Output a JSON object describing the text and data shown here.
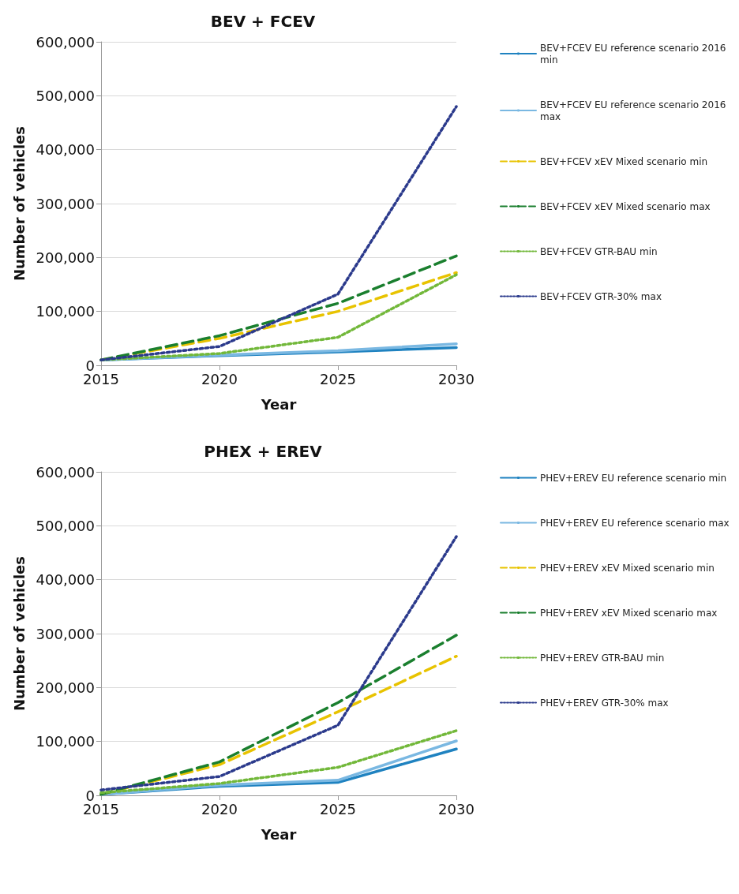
{
  "chart_data": [
    {
      "type": "line",
      "title": "BEV + FCEV",
      "xlabel": "Year",
      "ylabel": "Number of vehicles",
      "x": [
        2015,
        2020,
        2025,
        2030
      ],
      "xlim": [
        2015,
        2030
      ],
      "xticks": [
        2015,
        2020,
        2025,
        2030
      ],
      "ylim": [
        0,
        600000
      ],
      "yticks": [
        {
          "value": 0,
          "label": "0"
        },
        {
          "value": 100000,
          "label": "100,000"
        },
        {
          "value": 200000,
          "label": "200,000"
        },
        {
          "value": 300000,
          "label": "300,000"
        },
        {
          "value": 400000,
          "label": "400,000"
        },
        {
          "value": 500000,
          "label": "500,000"
        },
        {
          "value": 600000,
          "label": "600,000"
        }
      ],
      "grid": "y",
      "legend": "right",
      "marker": "none",
      "series": [
        {
          "name": "BEV+FCEV EU reference scenario 2016 min",
          "color": "#1f82c0",
          "line_style": "solid",
          "values": [
            10000,
            18000,
            25000,
            33000
          ]
        },
        {
          "name": "BEV+FCEV EU reference scenario 2016 max",
          "color": "#7ab8e2",
          "line_style": "solid",
          "values": [
            10000,
            19000,
            27000,
            40000
          ]
        },
        {
          "name": "BEV+FCEV xEV Mixed scenario min",
          "color": "#e8c300",
          "line_style": "dashed",
          "values": [
            10000,
            50000,
            100000,
            172000
          ]
        },
        {
          "name": "BEV+FCEV xEV Mixed scenario max",
          "color": "#1a7f2e",
          "line_style": "dashed",
          "values": [
            10000,
            55000,
            115000,
            203000
          ]
        },
        {
          "name": "BEV+FCEV GTR-BAU min",
          "color": "#72b83a",
          "line_style": "dotted",
          "values": [
            10000,
            22000,
            52000,
            168000
          ]
        },
        {
          "name": "BEV+FCEV GTR-30% max",
          "color": "#2b3a8c",
          "line_style": "dotted",
          "values": [
            10000,
            35000,
            132000,
            480000
          ]
        }
      ]
    },
    {
      "type": "line",
      "title": "PHEX + EREV",
      "xlabel": "Year",
      "ylabel": "Number of vehicles",
      "x": [
        2015,
        2020,
        2025,
        2030
      ],
      "xlim": [
        2015,
        2030
      ],
      "xticks": [
        2015,
        2020,
        2025,
        2030
      ],
      "ylim": [
        0,
        600000
      ],
      "yticks": [
        {
          "value": 0,
          "label": "0"
        },
        {
          "value": 100000,
          "label": "100,000"
        },
        {
          "value": 200000,
          "label": "200,000"
        },
        {
          "value": 300000,
          "label": "300,000"
        },
        {
          "value": 400000,
          "label": "400,000"
        },
        {
          "value": 500000,
          "label": "500,000"
        },
        {
          "value": 600000,
          "label": "600,000"
        }
      ],
      "grid": "y",
      "legend": "right",
      "marker": "none",
      "series": [
        {
          "name": "PHEV+EREV EU reference scenario min",
          "color": "#1f82c0",
          "line_style": "solid",
          "values": [
            2000,
            17000,
            24000,
            86000
          ]
        },
        {
          "name": "PHEV+EREV EU reference scenario max",
          "color": "#7ab8e2",
          "line_style": "solid",
          "values": [
            2000,
            19000,
            28000,
            101000
          ]
        },
        {
          "name": "PHEV+EREV xEV Mixed scenario min",
          "color": "#e8c300",
          "line_style": "dashed",
          "values": [
            2000,
            57000,
            155000,
            258000
          ]
        },
        {
          "name": "PHEV+EREV xEV Mixed scenario max",
          "color": "#1a7f2e",
          "line_style": "dashed",
          "values": [
            2000,
            62000,
            172000,
            297000
          ]
        },
        {
          "name": "PHEV+EREV GTR-BAU min",
          "color": "#72b83a",
          "line_style": "dotted",
          "values": [
            5000,
            22000,
            52000,
            120000
          ]
        },
        {
          "name": "PHEV+EREV GTR-30% max",
          "color": "#2b3a8c",
          "line_style": "dotted",
          "values": [
            10000,
            35000,
            130000,
            480000
          ]
        }
      ]
    }
  ]
}
